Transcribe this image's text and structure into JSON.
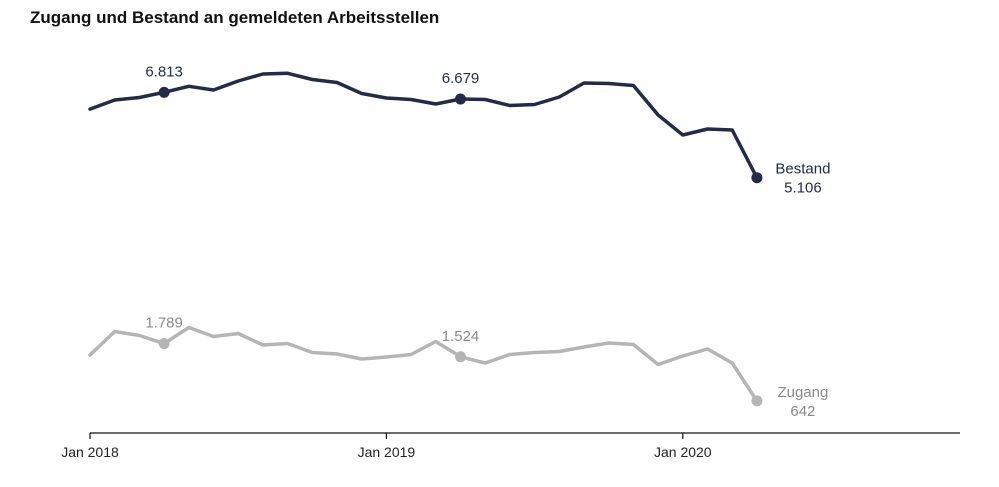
{
  "title": "Zugang und Bestand an gemeldeten Arbeitsstellen",
  "colors": {
    "bestand": "#262b45",
    "zugang": "#b5b5b5",
    "axis": "#111111"
  },
  "chart_data": {
    "type": "line",
    "title": "Zugang und Bestand an gemeldeten Arbeitsstellen",
    "xlabel": "",
    "ylabel": "",
    "x_ticks": [
      "Jan 2018",
      "Jan 2019",
      "Jan 2020"
    ],
    "x": [
      "2018-01",
      "2018-02",
      "2018-03",
      "2018-04",
      "2018-05",
      "2018-06",
      "2018-07",
      "2018-08",
      "2018-09",
      "2018-10",
      "2018-11",
      "2018-12",
      "2019-01",
      "2019-02",
      "2019-03",
      "2019-04",
      "2019-05",
      "2019-06",
      "2019-07",
      "2019-08",
      "2019-09",
      "2019-10",
      "2019-11",
      "2019-12",
      "2020-01",
      "2020-02",
      "2020-03",
      "2020-04"
    ],
    "ylim": [
      0,
      8000
    ],
    "grid": false,
    "legend": "none",
    "series": [
      {
        "name": "Bestand",
        "end_label": "5.106",
        "values": [
          6478,
          6660,
          6710,
          6813,
          6935,
          6860,
          7040,
          7180,
          7195,
          7070,
          7010,
          6790,
          6700,
          6670,
          6580,
          6679,
          6670,
          6550,
          6570,
          6720,
          7000,
          6990,
          6950,
          6360,
          5960,
          6080,
          6060,
          5106
        ],
        "annotations": [
          {
            "x": "2018-04",
            "label": "6.813"
          },
          {
            "x": "2019-04",
            "label": "6.679"
          }
        ]
      },
      {
        "name": "Zugang",
        "end_label": "642",
        "values": [
          1560,
          2030,
          1950,
          1789,
          2110,
          1930,
          1990,
          1760,
          1790,
          1610,
          1580,
          1480,
          1520,
          1570,
          1830,
          1524,
          1400,
          1570,
          1610,
          1630,
          1720,
          1800,
          1770,
          1370,
          1540,
          1680,
          1400,
          642
        ],
        "annotations": [
          {
            "x": "2018-04",
            "label": "1.789"
          },
          {
            "x": "2019-04",
            "label": "1.524"
          }
        ]
      }
    ]
  }
}
